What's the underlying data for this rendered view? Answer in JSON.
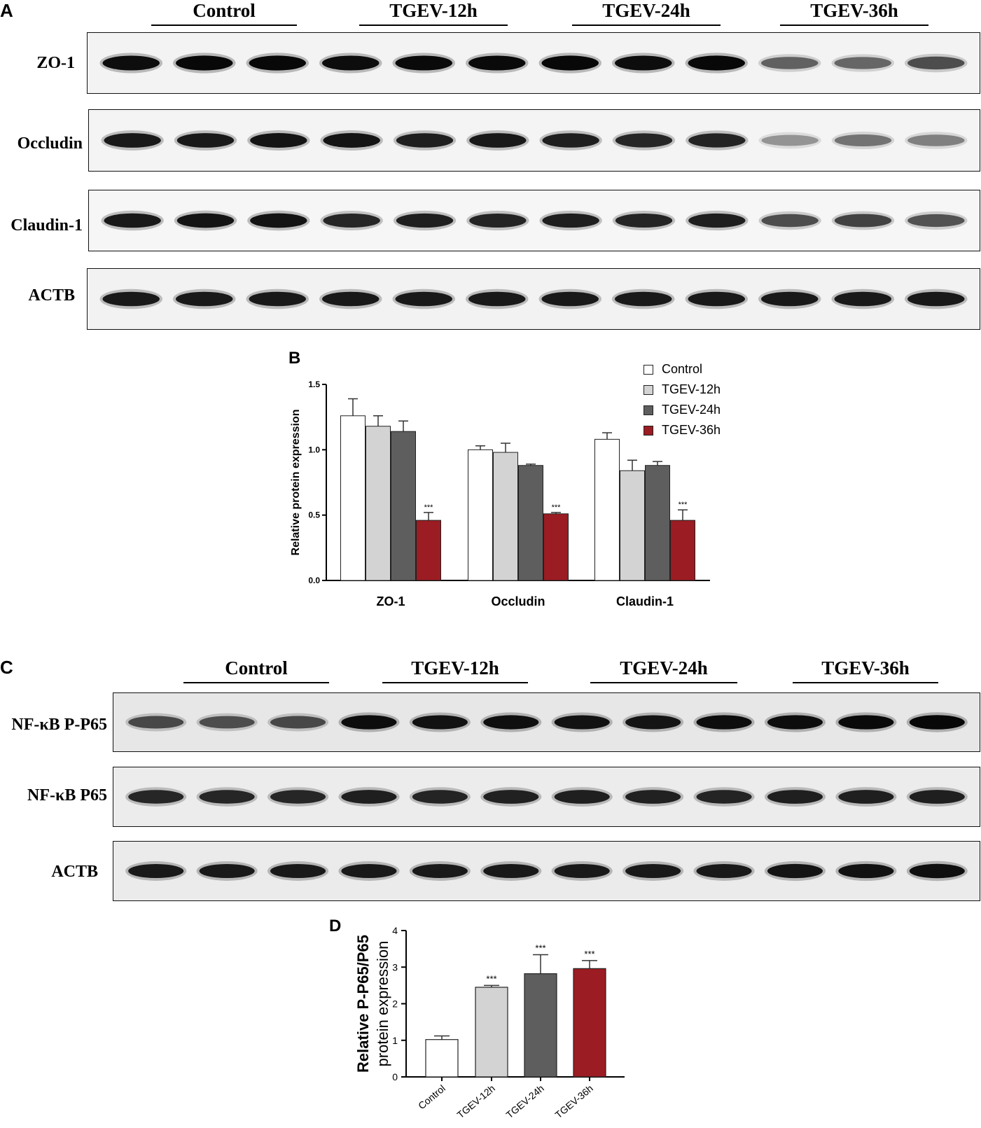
{
  "panels": {
    "a_letter": "A",
    "b_letter": "B",
    "c_letter": "C",
    "d_letter": "D"
  },
  "panel_a": {
    "groups": [
      "Control",
      "TGEV-12h",
      "TGEV-24h",
      "TGEV-36h"
    ],
    "rows": [
      {
        "label": "ZO-1",
        "bg": "#f3f3f3",
        "intensities": [
          0.95,
          0.97,
          0.97,
          0.95,
          0.96,
          0.96,
          0.97,
          0.95,
          0.97,
          0.62,
          0.6,
          0.7
        ]
      },
      {
        "label": "Occludin",
        "bg": "#f4f4f4",
        "intensities": [
          0.9,
          0.9,
          0.92,
          0.92,
          0.88,
          0.9,
          0.88,
          0.85,
          0.86,
          0.42,
          0.55,
          0.5
        ]
      },
      {
        "label": "Claudin-1",
        "bg": "#f6f6f6",
        "intensities": [
          0.9,
          0.92,
          0.92,
          0.85,
          0.88,
          0.86,
          0.88,
          0.86,
          0.88,
          0.7,
          0.74,
          0.68
        ]
      },
      {
        "label": "ACTB",
        "bg": "#f2f2f2",
        "intensities": [
          0.9,
          0.9,
          0.9,
          0.9,
          0.9,
          0.9,
          0.9,
          0.9,
          0.9,
          0.9,
          0.9,
          0.9
        ]
      }
    ]
  },
  "panel_c": {
    "groups": [
      "Control",
      "TGEV-12h",
      "TGEV-24h",
      "TGEV-36h"
    ],
    "rows": [
      {
        "label": "NF-κB P-P65",
        "bg": "#e7e7e7",
        "intensities": [
          0.72,
          0.7,
          0.72,
          0.95,
          0.93,
          0.94,
          0.93,
          0.92,
          0.95,
          0.95,
          0.96,
          0.97
        ]
      },
      {
        "label": "NF-κB P65",
        "bg": "#ececec",
        "intensities": [
          0.85,
          0.85,
          0.85,
          0.88,
          0.86,
          0.87,
          0.88,
          0.87,
          0.86,
          0.88,
          0.88,
          0.88
        ]
      },
      {
        "label": "ACTB",
        "bg": "#ebebeb",
        "intensities": [
          0.9,
          0.9,
          0.9,
          0.9,
          0.9,
          0.9,
          0.9,
          0.9,
          0.9,
          0.92,
          0.93,
          0.94
        ]
      }
    ]
  },
  "chart_data": [
    {
      "panel": "B",
      "type": "bar",
      "categories": [
        "ZO-1",
        "Occludin",
        "Claudin-1"
      ],
      "series": [
        {
          "name": "Control",
          "color": "#ffffff",
          "values": [
            1.26,
            1.0,
            1.08
          ],
          "errors": [
            0.13,
            0.03,
            0.05
          ],
          "sig": [
            "",
            "",
            ""
          ]
        },
        {
          "name": "TGEV-12h",
          "color": "#d3d3d3",
          "values": [
            1.18,
            0.98,
            0.84
          ],
          "errors": [
            0.08,
            0.07,
            0.08
          ],
          "sig": [
            "",
            "",
            ""
          ]
        },
        {
          "name": "TGEV-24h",
          "color": "#5e5e5e",
          "values": [
            1.14,
            0.88,
            0.88
          ],
          "errors": [
            0.08,
            0.01,
            0.03
          ],
          "sig": [
            "",
            "",
            ""
          ]
        },
        {
          "name": "TGEV-36h",
          "color": "#9b1c22",
          "values": [
            0.46,
            0.51,
            0.46
          ],
          "errors": [
            0.06,
            0.01,
            0.08
          ],
          "sig": [
            "***",
            "***",
            "***"
          ]
        }
      ],
      "ylabel": "Relative protein expression",
      "ylim": [
        0,
        1.5
      ],
      "yticks": [
        "0.0",
        "0.5",
        "1.0",
        "1.5"
      ],
      "legend_position": "top-right"
    },
    {
      "panel": "D",
      "type": "bar",
      "categories": [
        "Control",
        "TGEV-12h",
        "TGEV-24h",
        "TGEV-36h"
      ],
      "values": [
        1.02,
        2.45,
        2.82,
        2.96
      ],
      "errors": [
        0.1,
        0.05,
        0.52,
        0.22
      ],
      "colors": [
        "#ffffff",
        "#d3d3d3",
        "#5e5e5e",
        "#9b1c22"
      ],
      "sig": [
        "",
        "***",
        "***",
        "***"
      ],
      "ylabel_line1": "Relative P-P65/P65",
      "ylabel_line2": "protein expression",
      "ylim": [
        0,
        4
      ],
      "yticks": [
        "0",
        "1",
        "2",
        "3",
        "4"
      ]
    }
  ]
}
